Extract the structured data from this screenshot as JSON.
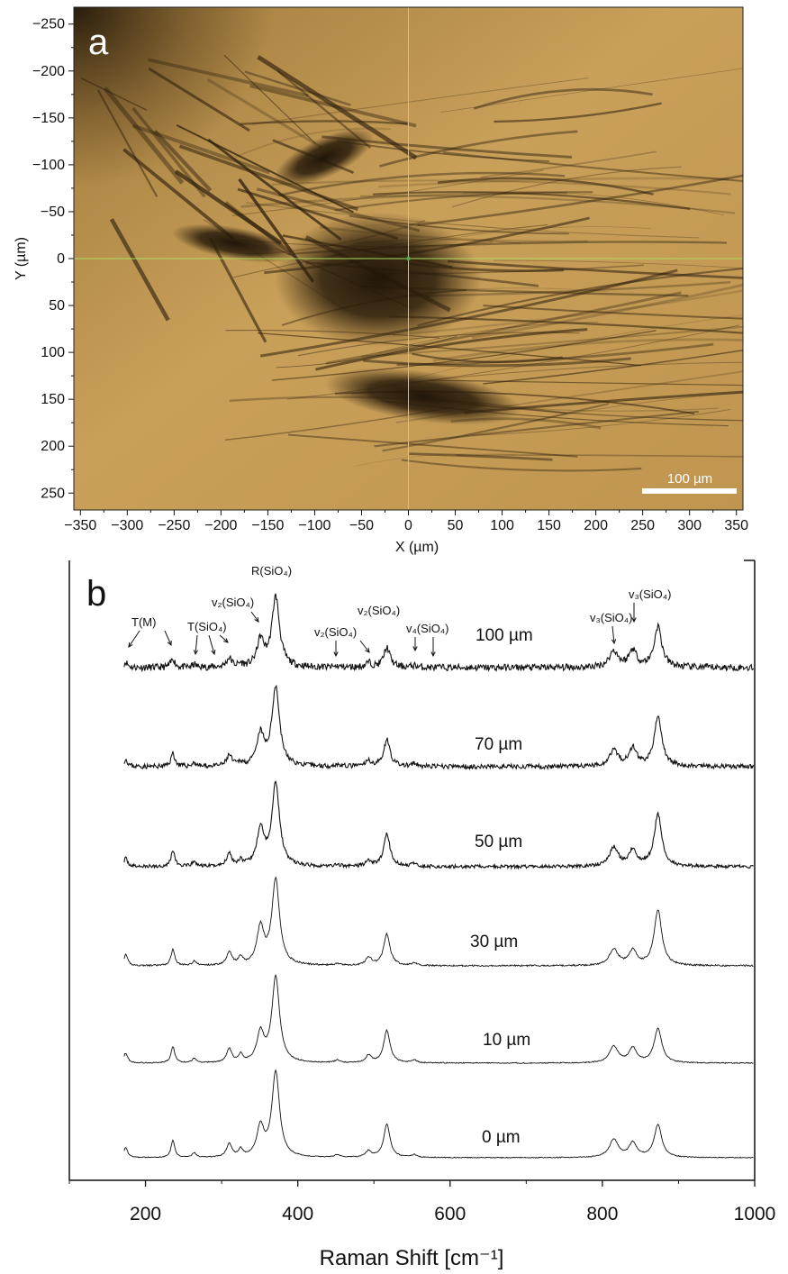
{
  "panel_a": {
    "letter": "a",
    "x_axis_label": "X (µm)",
    "y_axis_label": "Y (µm)",
    "x_ticks": [
      -350,
      -300,
      -250,
      -200,
      -150,
      -100,
      -50,
      0,
      50,
      100,
      150,
      200,
      250,
      300,
      350
    ],
    "x_tick_labels": [
      "−350",
      "−300",
      "−250",
      "−200",
      "−150",
      "−100",
      "−50",
      "0",
      "50",
      "100",
      "150",
      "200",
      "250",
      "300",
      "350"
    ],
    "y_ticks": [
      -250,
      -200,
      -150,
      -100,
      -50,
      0,
      50,
      100,
      150,
      200,
      250
    ],
    "y_tick_labels": [
      "−250",
      "−200",
      "−150",
      "−100",
      "−50",
      "0",
      "50",
      "100",
      "150",
      "200",
      "250"
    ],
    "xlim": [
      -357,
      357
    ],
    "ylim": [
      -268,
      268
    ],
    "crosshair": [
      0,
      0
    ],
    "scale_bar_label": "100 µm",
    "scale_bar_length": 100,
    "colors": {
      "background": "#c49a55",
      "dark": "#2a1d0c",
      "crosshair": "#a8e05a"
    }
  },
  "chart_data": {
    "type": "line",
    "panel": "b",
    "letter": "b",
    "xlabel": "Raman Shift [cm⁻¹]",
    "ylabel": "",
    "xlim": [
      100,
      1000
    ],
    "x_ticks": [
      200,
      400,
      600,
      800,
      1000
    ],
    "x_tick_labels": [
      "200",
      "400",
      "600",
      "800",
      "1000"
    ],
    "series_note": "stacked Raman spectra, vertically offset",
    "peaks_cm1": [
      174,
      236,
      264,
      310,
      325,
      351,
      371,
      452,
      493,
      517,
      553,
      815,
      840,
      873
    ],
    "series": [
      {
        "name": "100 µm",
        "label": "100 µm",
        "peak_heights": [
          6,
          10,
          3,
          10,
          3,
          29,
          78,
          1,
          5,
          22,
          2,
          18,
          19,
          45
        ],
        "noise": 3.8,
        "seed": 11
      },
      {
        "name": "70 µm",
        "label": "70 µm",
        "peak_heights": [
          8,
          15,
          4,
          12,
          4,
          34,
          88,
          2,
          6,
          30,
          3,
          18,
          20,
          55
        ],
        "noise": 2.6,
        "seed": 23
      },
      {
        "name": "50 µm",
        "label": "50 µm",
        "peak_heights": [
          9,
          18,
          5,
          14,
          6,
          40,
          92,
          2,
          6,
          36,
          3,
          21,
          18,
          58
        ],
        "noise": 1.9,
        "seed": 37
      },
      {
        "name": "30 µm",
        "label": "30 µm",
        "peak_heights": [
          12,
          18,
          5,
          15,
          8,
          41,
          95,
          2,
          9,
          35,
          3,
          18,
          16,
          62
        ],
        "noise": 0.9,
        "seed": 41
      },
      {
        "name": "10 µm",
        "label": "10 µm",
        "peak_heights": [
          11,
          18,
          5,
          15,
          8,
          32,
          95,
          3,
          8,
          36,
          3,
          18,
          16,
          38
        ],
        "noise": 0.6,
        "seed": 53
      },
      {
        "name": "0 µm",
        "label": "0 µm",
        "peak_heights": [
          11,
          19,
          5,
          15,
          8,
          33,
          95,
          3,
          7,
          37,
          3,
          20,
          16,
          36
        ],
        "noise": 0.5,
        "seed": 67
      }
    ],
    "annotations": {
      "t_m": "T(M)",
      "t_sio4": "T(SiO₄)",
      "v2_sio4_a": "v₂(SiO₄)",
      "r_sio4": "R(SiO₄)",
      "v2_sio4_b": "v₂(SiO₄)",
      "v2_sio4_c": "v₂(SiO₄)",
      "v4_sio4": "v₄(SiO₄)",
      "v3_sio4_a": "v₃(SiO₄)",
      "v3_sio4_b": "v₃(SiO₄)"
    }
  }
}
